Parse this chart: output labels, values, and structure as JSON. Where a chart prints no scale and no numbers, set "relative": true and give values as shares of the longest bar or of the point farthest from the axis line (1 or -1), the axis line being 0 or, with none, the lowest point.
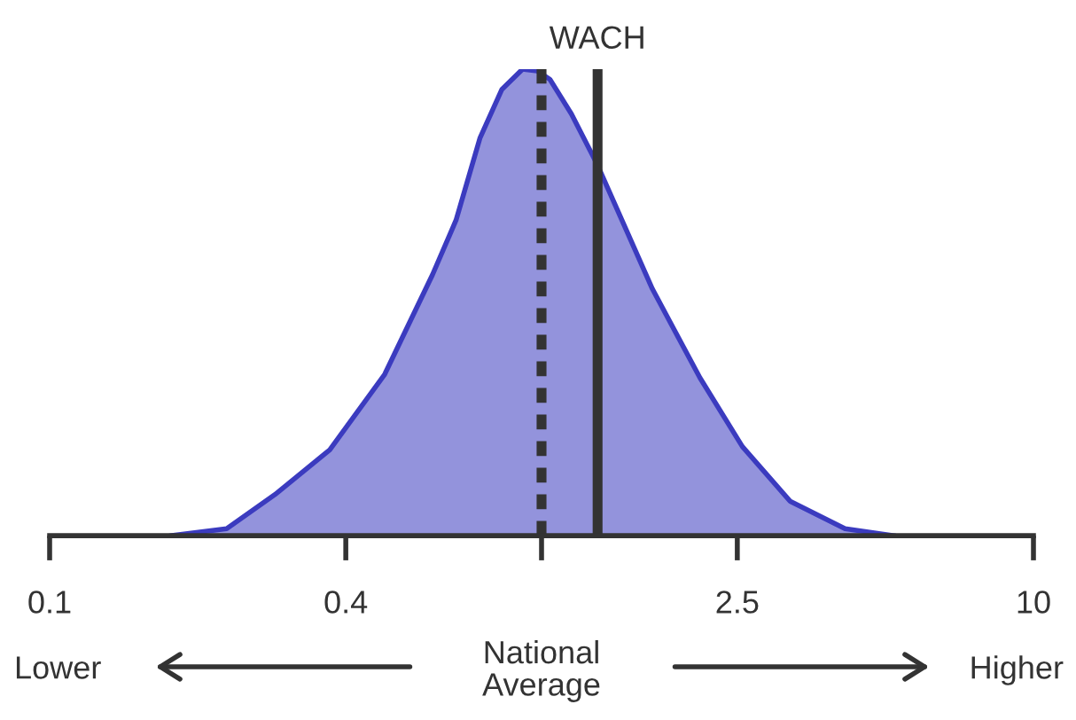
{
  "chart_data": {
    "type": "area",
    "relative": true,
    "log": "x",
    "color": "#3b3bbf",
    "x": [
      0.177,
      0.229,
      0.287,
      0.371,
      0.48,
      0.6,
      0.67,
      0.75,
      0.83,
      0.915,
      0.98,
      1.04,
      1.15,
      1.3,
      1.68,
      2.1,
      2.56,
      3.2,
      4.14,
      5.19
    ],
    "values": [
      0,
      0.015,
      0.088,
      0.184,
      0.346,
      0.559,
      0.676,
      0.853,
      0.956,
      1.0,
      0.996,
      0.978,
      0.904,
      0.794,
      0.529,
      0.338,
      0.191,
      0.074,
      0.015,
      0
    ],
    "xlim": [
      0.1,
      10
    ],
    "xticks": [
      0.1,
      0.4,
      {
        "value": 1,
        "label": null
      },
      2.5,
      10
    ],
    "ref_lines": [
      {
        "axis": "x",
        "value": 1,
        "label": null,
        "color": "#333333",
        "line_style": "dashed"
      },
      {
        "axis": "x",
        "value": 1.3,
        "label": "WACH",
        "color": "#333333",
        "line_style": "solid"
      }
    ],
    "annotations": [
      "Lower",
      "Higher",
      "National\nAverage"
    ],
    "grid": false,
    "legend": false
  }
}
